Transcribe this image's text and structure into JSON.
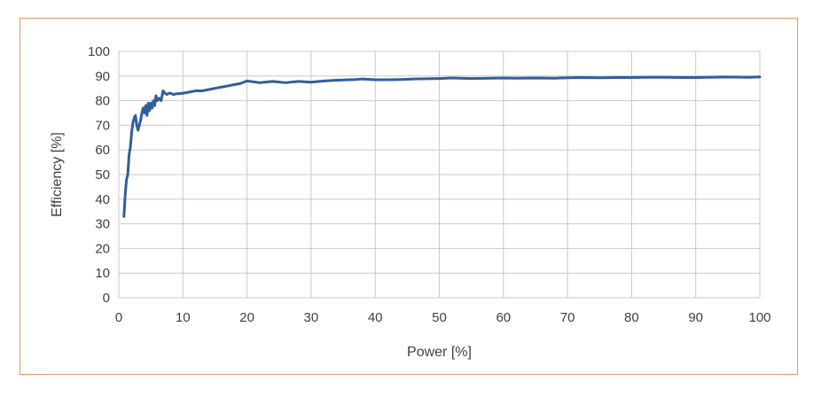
{
  "chart_data": {
    "type": "line",
    "title": "",
    "xlabel": "Power [%]",
    "ylabel": "Efficiency [%]",
    "xlim": [
      0,
      100
    ],
    "ylim": [
      0,
      100
    ],
    "xticks": [
      0,
      10,
      20,
      30,
      40,
      50,
      60,
      70,
      80,
      90,
      100
    ],
    "yticks": [
      0,
      10,
      20,
      30,
      40,
      50,
      60,
      70,
      80,
      90,
      100
    ],
    "grid": true,
    "legend": "none",
    "line_color": "#2f5f9e",
    "frame_color": "#e39a5e",
    "series": [
      {
        "x": [
          0.8,
          1.0,
          1.2,
          1.4,
          1.6,
          1.8,
          2.0,
          2.2,
          2.4,
          2.6,
          2.8,
          3.0,
          3.2,
          3.4,
          3.6,
          3.8,
          4.0,
          4.2,
          4.4,
          4.6,
          4.8,
          5.0,
          5.2,
          5.4,
          5.6,
          5.8,
          6.0,
          6.3,
          6.6,
          6.9,
          7.2,
          7.5,
          7.8,
          8.1,
          8.5,
          9.0,
          10,
          11,
          12,
          13,
          14,
          15,
          16,
          17,
          18,
          19,
          20,
          22,
          24,
          26,
          28,
          30,
          32,
          34,
          36,
          37,
          38,
          40,
          42,
          44,
          46,
          48,
          50,
          52,
          55,
          58,
          60,
          62,
          65,
          68,
          70,
          72,
          75,
          78,
          80,
          82,
          85,
          88,
          90,
          92,
          95,
          98,
          100
        ],
        "y": [
          33,
          42,
          48,
          50,
          58,
          61,
          67,
          71,
          73,
          74,
          70,
          68,
          70,
          72,
          75,
          77,
          75,
          78,
          74,
          79,
          76,
          79,
          77,
          80,
          78,
          82,
          80,
          81,
          80,
          84,
          83,
          82.5,
          83,
          83,
          82.5,
          82.8,
          83,
          83.5,
          84,
          84,
          84.5,
          85,
          85.5,
          86,
          86.5,
          87,
          88,
          87.3,
          87.8,
          87.3,
          87.8,
          87.5,
          88,
          88.3,
          88.5,
          88.6,
          88.8,
          88.5,
          88.5,
          88.6,
          88.8,
          88.9,
          89,
          89.2,
          89,
          89.1,
          89.2,
          89.1,
          89.2,
          89.1,
          89.3,
          89.4,
          89.3,
          89.4,
          89.4,
          89.5,
          89.5,
          89.4,
          89.4,
          89.5,
          89.6,
          89.5,
          89.6
        ]
      }
    ]
  }
}
